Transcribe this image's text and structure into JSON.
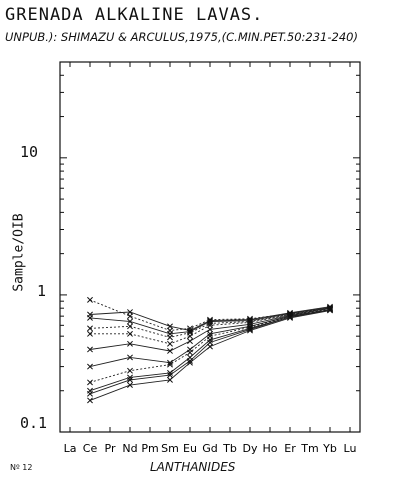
{
  "title": "GRENADA ALKALINE LAVAS.",
  "subtitle": "UNPUB.): SHIMAZU & ARCULUS,1975,(C.MIN.PET.50:231-240)",
  "footnote": "Nº 12",
  "chart_data": {
    "type": "line",
    "xlabel": "LANTHANIDES",
    "ylabel": "Sample/OIB",
    "yscale": "log",
    "ylim": [
      0.1,
      50
    ],
    "yticks": [
      {
        "value": 0.1,
        "label": "0.1"
      },
      {
        "value": 1,
        "label": "1"
      },
      {
        "value": 10,
        "label": "10"
      }
    ],
    "categories": [
      "La",
      "Ce",
      "Pr",
      "Nd",
      "Pm",
      "Sm",
      "Eu",
      "Gd",
      "Tb",
      "Dy",
      "Ho",
      "Er",
      "Tm",
      "Yb",
      "Lu"
    ],
    "series": [
      {
        "dash": true,
        "values": {
          "Ce": 0.92,
          "Nd": 0.7,
          "Sm": 0.55,
          "Eu": 0.57,
          "Gd": 0.66,
          "Dy": 0.67,
          "Er": 0.73,
          "Yb": 0.8
        }
      },
      {
        "dash": false,
        "values": {
          "Ce": 0.72,
          "Nd": 0.75,
          "Sm": 0.59,
          "Eu": 0.55,
          "Gd": 0.65,
          "Dy": 0.66,
          "Er": 0.74,
          "Yb": 0.82
        }
      },
      {
        "dash": false,
        "values": {
          "Ce": 0.68,
          "Nd": 0.64,
          "Sm": 0.52,
          "Eu": 0.54,
          "Gd": 0.64,
          "Dy": 0.65,
          "Er": 0.73,
          "Yb": 0.81
        }
      },
      {
        "dash": true,
        "values": {
          "Ce": 0.57,
          "Nd": 0.59,
          "Sm": 0.49,
          "Eu": 0.53,
          "Gd": 0.62,
          "Dy": 0.64,
          "Er": 0.72,
          "Yb": 0.8
        }
      },
      {
        "dash": true,
        "values": {
          "Ce": 0.52,
          "Nd": 0.52,
          "Sm": 0.44,
          "Eu": 0.5,
          "Gd": 0.6,
          "Dy": 0.63,
          "Er": 0.72,
          "Yb": 0.79
        }
      },
      {
        "dash": false,
        "values": {
          "Ce": 0.4,
          "Nd": 0.44,
          "Sm": 0.39,
          "Eu": 0.46,
          "Gd": 0.56,
          "Dy": 0.61,
          "Er": 0.71,
          "Yb": 0.8
        }
      },
      {
        "dash": false,
        "values": {
          "Ce": 0.3,
          "Nd": 0.35,
          "Sm": 0.32,
          "Eu": 0.4,
          "Gd": 0.52,
          "Dy": 0.59,
          "Er": 0.7,
          "Yb": 0.78
        }
      },
      {
        "dash": true,
        "values": {
          "Ce": 0.23,
          "Nd": 0.28,
          "Sm": 0.31,
          "Eu": 0.38,
          "Gd": 0.5,
          "Dy": 0.58,
          "Er": 0.7,
          "Yb": 0.79
        }
      },
      {
        "dash": false,
        "values": {
          "Ce": 0.2,
          "Nd": 0.25,
          "Sm": 0.27,
          "Eu": 0.35,
          "Gd": 0.47,
          "Dy": 0.57,
          "Er": 0.69,
          "Yb": 0.78
        }
      },
      {
        "dash": false,
        "values": {
          "Ce": 0.19,
          "Nd": 0.24,
          "Sm": 0.26,
          "Eu": 0.33,
          "Gd": 0.45,
          "Dy": 0.56,
          "Er": 0.69,
          "Yb": 0.78
        }
      },
      {
        "dash": false,
        "values": {
          "Ce": 0.17,
          "Nd": 0.22,
          "Sm": 0.24,
          "Eu": 0.32,
          "Gd": 0.42,
          "Dy": 0.55,
          "Er": 0.68,
          "Yb": 0.77
        }
      }
    ]
  }
}
